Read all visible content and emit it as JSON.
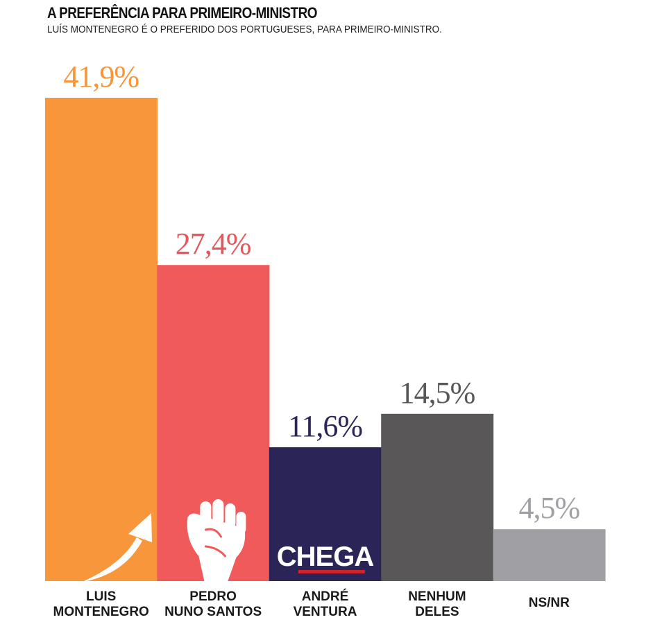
{
  "chart_data": {
    "type": "bar",
    "title": "A PREFERÊNCIA PARA PRIMEIRO-MINISTRO",
    "subtitle": "LUÍS MONTENEGRO É O PREFERIDO DOS PORTUGUESES, PARA PRIMEIRO-MINISTRO.",
    "categories": [
      [
        "LUIS",
        "MONTENEGRO"
      ],
      [
        "PEDRO",
        "NUNO SANTOS"
      ],
      [
        "ANDRÉ",
        "VENTURA"
      ],
      [
        "NENHUM",
        "DELES"
      ],
      [
        "NS/NR"
      ]
    ],
    "values": [
      41.9,
      27.4,
      11.6,
      14.5,
      4.5
    ],
    "value_labels": [
      "41,9%",
      "27,4%",
      "11,6%",
      "14,5%",
      "4,5%"
    ],
    "bar_colors": [
      "#F7963A",
      "#F15A5B",
      "#2A2457",
      "#595758",
      "#A09FA4"
    ],
    "label_colors": [
      "#F7963A",
      "#E4575A",
      "#2A2457",
      "#595758",
      "#A09FA4"
    ],
    "ylim": [
      0,
      45
    ],
    "grid": false,
    "xlabel": "",
    "ylabel": "",
    "bar_icons": [
      "arrow-up-right-icon",
      "raised-fist-icon",
      "chega-logo",
      "",
      ""
    ],
    "logo_text": "CHEGA"
  }
}
